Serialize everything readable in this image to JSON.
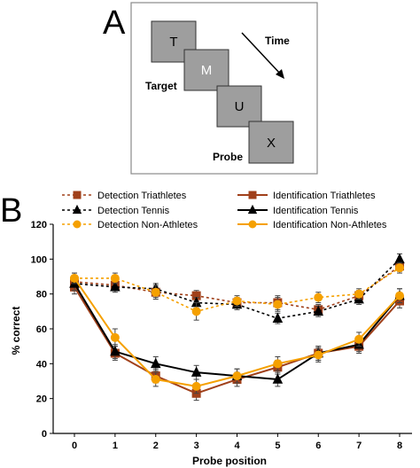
{
  "panel_a": {
    "letter": "A",
    "time_label": "Time",
    "target_label": "Target",
    "probe_label": "Probe",
    "cards": [
      "T",
      "M",
      "U",
      "X"
    ]
  },
  "panel_b": {
    "letter": "B"
  },
  "colors": {
    "triathletes": "#A0401A",
    "tennis": "#000000",
    "non_athletes": "#F5A000",
    "card_fill": "#9e9e9e"
  },
  "chart_data": {
    "type": "line",
    "x": [
      0,
      1,
      2,
      3,
      4,
      5,
      6,
      7,
      8
    ],
    "xlabel": "Probe position",
    "ylabel": "% correct",
    "xlim": [
      0,
      8
    ],
    "ylim": [
      0,
      120
    ],
    "yticks": [
      0,
      20,
      40,
      60,
      80,
      100,
      120
    ],
    "legend_position": "top",
    "series": [
      {
        "name": "Detection Triathletes",
        "task": "detection",
        "group": "triathletes",
        "marker": "square",
        "values": [
          87,
          85,
          81,
          79,
          75,
          75,
          71,
          79,
          96
        ],
        "errors": [
          3,
          3,
          3,
          3,
          3,
          4,
          3,
          3,
          3
        ]
      },
      {
        "name": "Detection Tennis",
        "task": "detection",
        "group": "tennis",
        "marker": "triangle",
        "values": [
          86,
          84,
          83,
          75,
          74,
          66,
          70,
          77,
          100
        ],
        "errors": [
          3,
          3,
          3,
          3,
          3,
          3,
          3,
          3,
          3
        ]
      },
      {
        "name": "Detection Non-Athletes",
        "task": "detection",
        "group": "non_athletes",
        "marker": "circle",
        "values": [
          89,
          89,
          81,
          70,
          76,
          74,
          78,
          80,
          95
        ],
        "errors": [
          3,
          3,
          4,
          5,
          3,
          4,
          3,
          3,
          3
        ]
      },
      {
        "name": "Identification Triathletes",
        "task": "identification",
        "group": "triathletes",
        "marker": "square",
        "values": [
          84,
          46,
          33,
          23,
          31,
          38,
          46,
          50,
          76
        ],
        "errors": [
          4,
          4,
          4,
          4,
          4,
          4,
          4,
          4,
          4
        ]
      },
      {
        "name": "Identification Tennis",
        "task": "identification",
        "group": "tennis",
        "marker": "triangle",
        "values": [
          86,
          47,
          40,
          35,
          33,
          31,
          46,
          51,
          79
        ],
        "errors": [
          4,
          4,
          4,
          4,
          4,
          4,
          4,
          4,
          4
        ]
      },
      {
        "name": "Identification Non-Athletes",
        "task": "identification",
        "group": "non_athletes",
        "marker": "circle",
        "values": [
          89,
          55,
          31,
          27,
          33,
          40,
          45,
          54,
          79
        ],
        "errors": [
          3,
          5,
          4,
          4,
          4,
          4,
          4,
          4,
          4
        ]
      }
    ]
  }
}
